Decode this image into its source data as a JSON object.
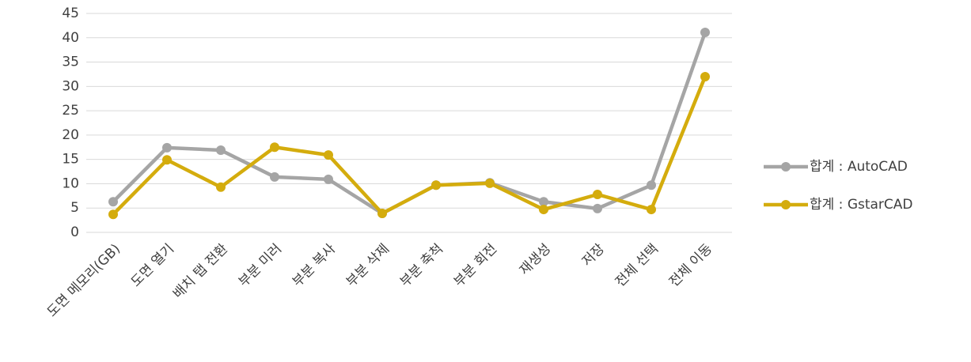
{
  "chart_data": {
    "type": "line",
    "categories": [
      "도면 메모리(GB)",
      "도면 열기",
      "배치 탭 전환",
      "부분 미러",
      "부분 복사",
      "부분 삭제",
      "부분 축척",
      "부분 회전",
      "재생성",
      "저장",
      "전체 선택",
      "전체 이동"
    ],
    "series": [
      {
        "name": "합계 : AutoCAD",
        "color": "#a5a5a5",
        "values": [
          6.3,
          17.4,
          16.9,
          11.4,
          10.9,
          3.9,
          9.7,
          10.2,
          6.3,
          4.9,
          9.7,
          41.1
        ]
      },
      {
        "name": "합계 : GstarCAD",
        "color": "#d4ac0d",
        "values": [
          3.7,
          14.9,
          9.3,
          17.5,
          15.9,
          3.9,
          9.7,
          10.1,
          4.7,
          7.8,
          4.7,
          32.0
        ]
      }
    ],
    "ylim": [
      0,
      45
    ],
    "yticks": [
      0,
      5,
      10,
      15,
      20,
      25,
      30,
      35,
      40,
      45
    ],
    "grid": true,
    "legend": "right"
  }
}
